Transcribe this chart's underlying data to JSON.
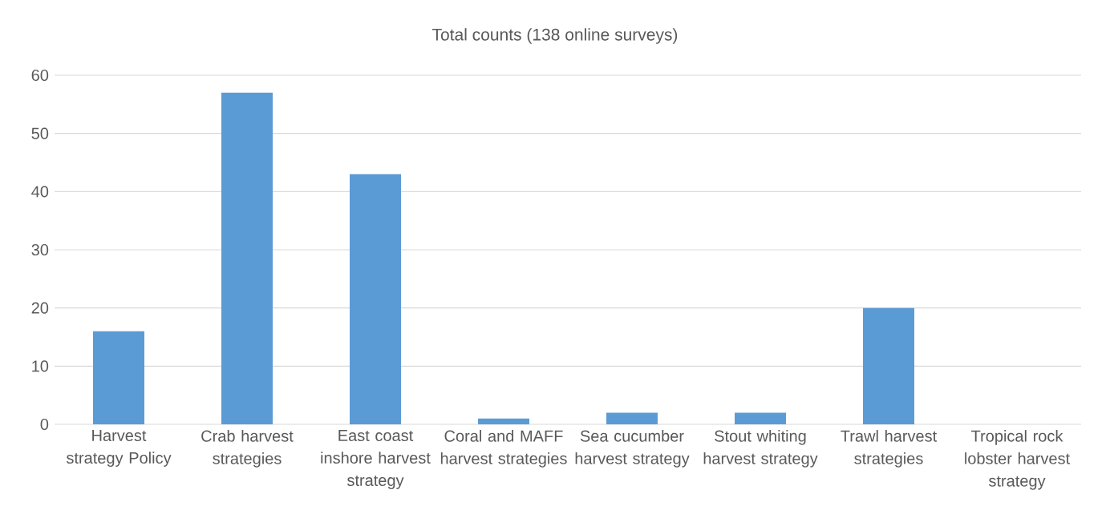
{
  "chart_data": {
    "type": "bar",
    "title": "Total counts (138 online surveys)",
    "categories": [
      "Harvest strategy Policy",
      "Crab harvest strategies",
      "East coast inshore harvest strategy",
      "Coral and MAFF harvest strategies",
      "Sea cucumber harvest strategy",
      "Stout whiting harvest strategy",
      "Trawl harvest strategies",
      "Tropical rock lobster harvest strategy"
    ],
    "values": [
      16,
      57,
      43,
      1,
      2,
      2,
      20,
      0
    ],
    "color": "#5b9bd5",
    "ylim": [
      0,
      60
    ],
    "yticks": [
      0,
      10,
      20,
      30,
      40,
      50,
      60
    ],
    "grid": "y"
  }
}
